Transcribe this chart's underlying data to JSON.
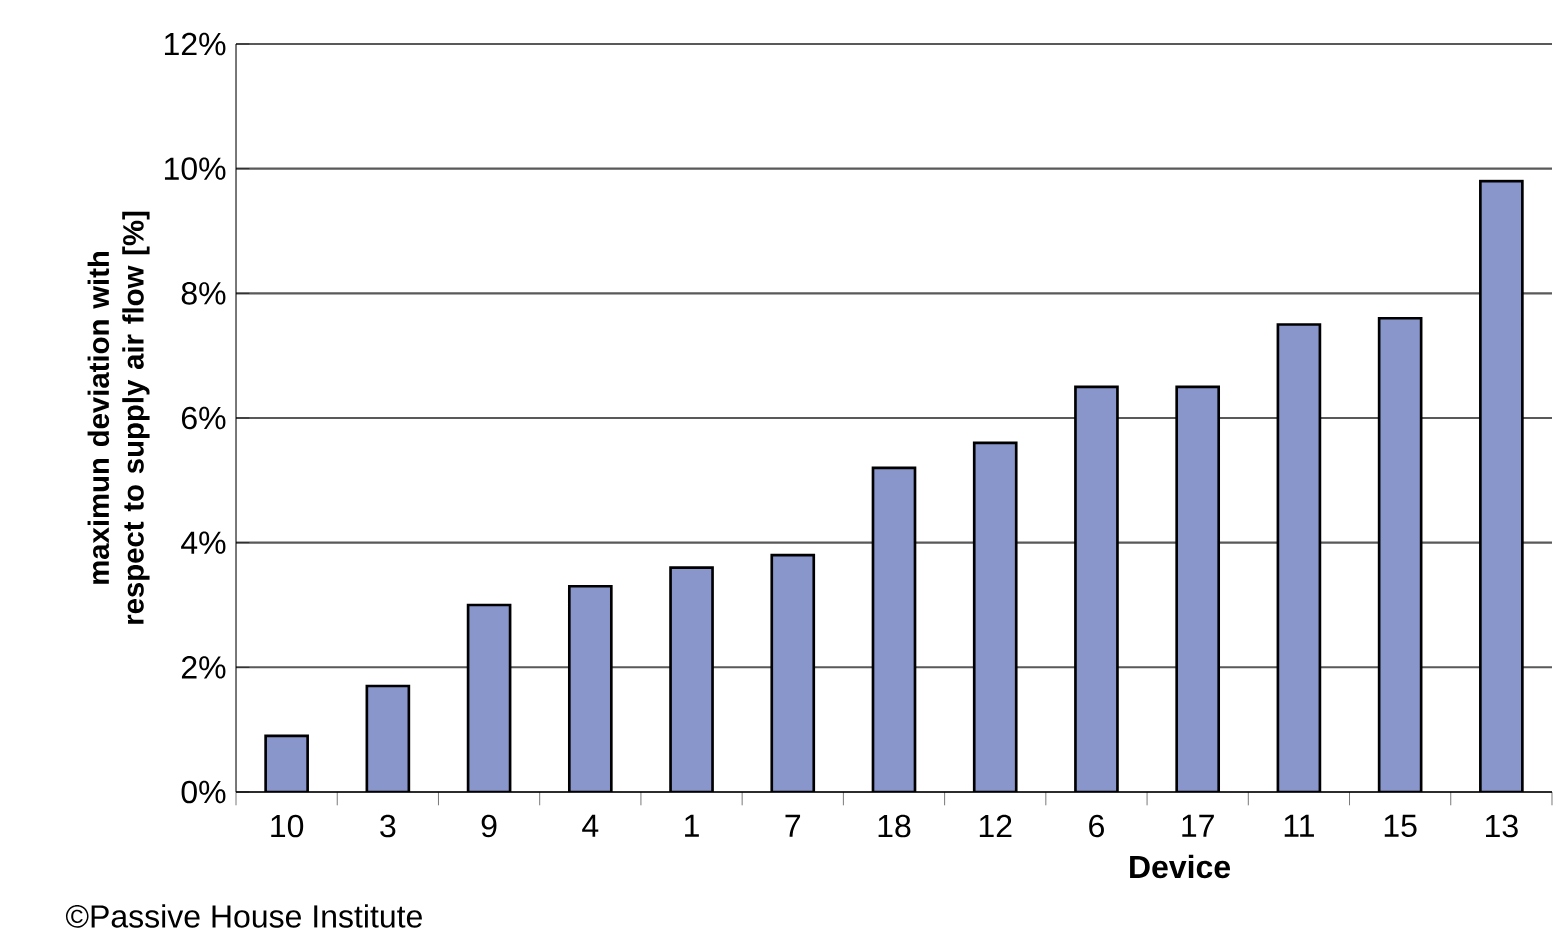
{
  "chart_data": {
    "type": "bar",
    "xlabel": "Device",
    "ylabel": "maximun deviation with respect to supply air flow  [%]",
    "categories": [
      "10",
      "3",
      "9",
      "4",
      "1",
      "7",
      "18",
      "12",
      "6",
      "17",
      "11",
      "15",
      "13"
    ],
    "values": [
      0.9,
      1.7,
      3.0,
      3.3,
      3.6,
      3.8,
      5.2,
      5.6,
      6.5,
      6.5,
      7.5,
      7.6,
      9.8
    ],
    "color": "#8896cc",
    "ylim": [
      0,
      12
    ],
    "yticks": [
      {
        "value": 0,
        "label": "0%"
      },
      {
        "value": 2,
        "label": "2%"
      },
      {
        "value": 4,
        "label": "4%"
      },
      {
        "value": 6,
        "label": "6%"
      },
      {
        "value": 8,
        "label": "8%"
      },
      {
        "value": 10,
        "label": "10%"
      },
      {
        "value": 12,
        "label": "12%"
      }
    ],
    "grid": "y",
    "annotations": [
      "©Passive House Institute"
    ]
  }
}
